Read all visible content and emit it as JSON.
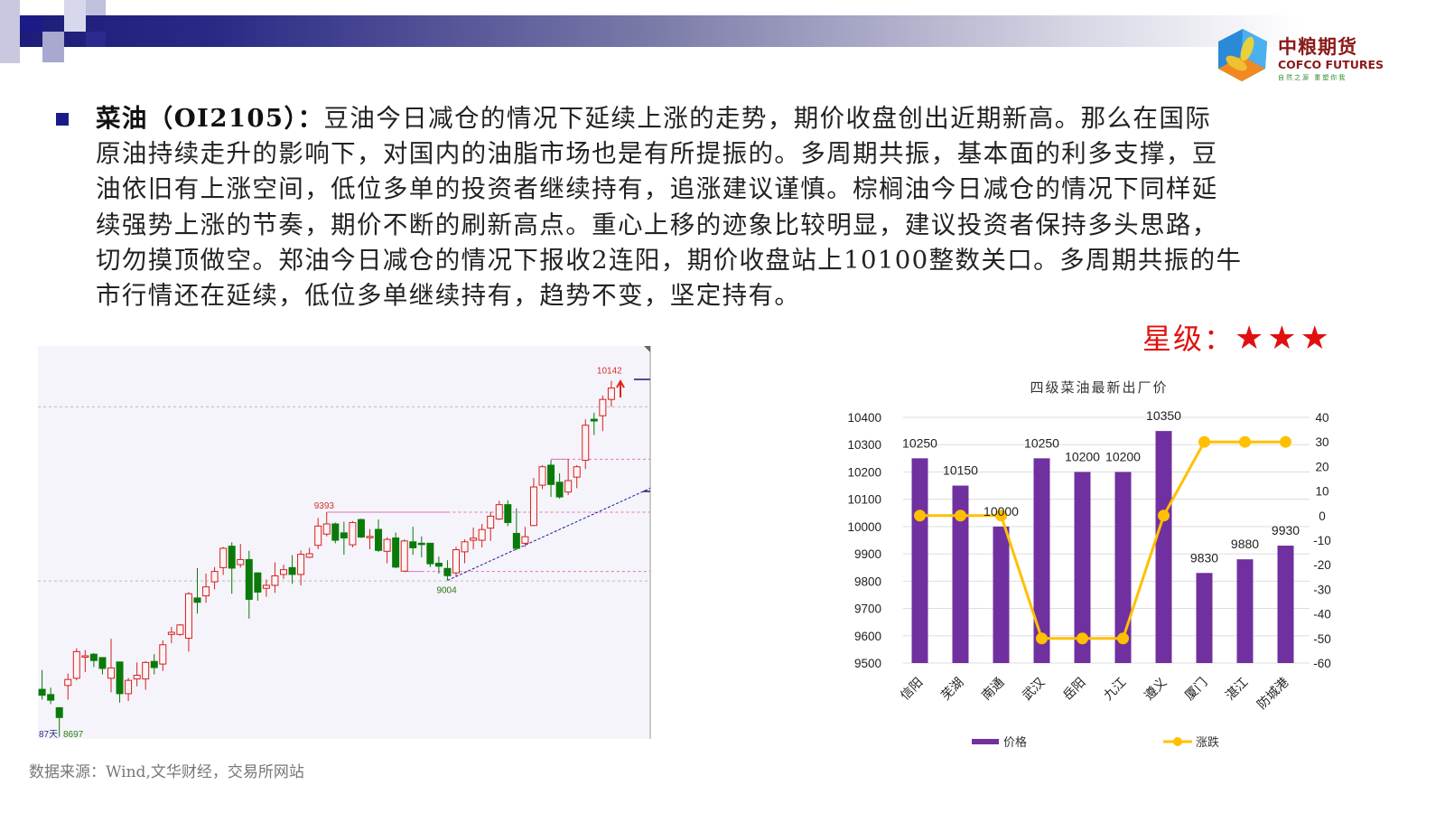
{
  "header": {
    "colors": {
      "bar_start": "#1b1b78",
      "bar_end": "#ffffff"
    }
  },
  "logo": {
    "name_cn": "中粮期货",
    "name_en": "COFCO FUTURES",
    "slogan": "自然之源 重塑你我"
  },
  "commentary": {
    "lead": "菜油（OI2105）：",
    "lines": [
      "豆油今日减仓的情况下延续上涨的走势，期价收盘创出近期新高。那么在国际",
      "原油持续走升的影响下，对国内的油脂市场也是有所提振的。多周期共振，基本面的利多支撑，豆",
      "油依旧有上涨空间，低位多单的投资者继续持有，追涨建议谨慎。棕榈油今日减仓的情况下同样延",
      "续强势上涨的节奏，期价不断的刷新高点。重心上移的迹象比较明显，建议投资者保持多头思路，",
      "切勿摸顶做空。郑油今日减仓的情况下报收2连阳，期价收盘站上10100整数关口。多周期共振的牛",
      "市行情还在延续，低位多单继续持有，趋势不变，坚定持有。"
    ]
  },
  "rating": {
    "label": "星级：",
    "stars": "★★★",
    "star_count": 3,
    "color": "#e01010"
  },
  "source": "数据来源：Wind,文华财经，交易所网站",
  "chart_data": [
    {
      "type": "candlestick",
      "ylim": [
        8100,
        10346
      ],
      "annotations": {
        "high": "10142",
        "mid_high": "9393",
        "low": "9004",
        "bottom_low": "8697",
        "bottom_count": "87天"
      },
      "colors": {
        "up": "#d42020",
        "down": "#0a7a0a",
        "trend": "#1a1a99",
        "level": "#e070c0"
      },
      "levels": [
        9994,
        9001
      ],
      "candles": [
        [
          8383,
          8493,
          8324,
          8349
        ],
        [
          8353,
          8392,
          8299,
          8321
        ],
        [
          8278,
          8282,
          8112,
          8222
        ],
        [
          8405,
          8473,
          8324,
          8439
        ],
        [
          8446,
          8617,
          8434,
          8598
        ],
        [
          8568,
          8607,
          8481,
          8574
        ],
        [
          8583,
          8590,
          8510,
          8547
        ],
        [
          8564,
          8566,
          8468,
          8502
        ],
        [
          8446,
          8671,
          8366,
          8505
        ],
        [
          8539,
          8539,
          8307,
          8358
        ],
        [
          8358,
          8448,
          8316,
          8434
        ],
        [
          8442,
          8536,
          8400,
          8463
        ],
        [
          8442,
          8544,
          8380,
          8536
        ],
        [
          8542,
          8583,
          8468,
          8507
        ],
        [
          8527,
          8662,
          8488,
          8637
        ],
        [
          8696,
          8739,
          8646,
          8708
        ],
        [
          8696,
          8755,
          8688,
          8750
        ],
        [
          8674,
          8938,
          8598,
          8928
        ],
        [
          8904,
          9074,
          8815,
          8879
        ],
        [
          8916,
          9043,
          8877,
          8967
        ],
        [
          8996,
          9080,
          8953,
          9055
        ],
        [
          9077,
          9195,
          9035,
          9187
        ],
        [
          9199,
          9221,
          8928,
          9074
        ],
        [
          9094,
          9212,
          9077,
          9123
        ],
        [
          9123,
          9173,
          8786,
          8896
        ],
        [
          9047,
          9047,
          8888,
          8937
        ],
        [
          8959,
          9009,
          8911,
          8976
        ],
        [
          8976,
          9107,
          8933,
          9030
        ],
        [
          9038,
          9094,
          9013,
          9065
        ],
        [
          9077,
          9148,
          8984,
          9038
        ],
        [
          9038,
          9175,
          8976,
          9153
        ],
        [
          9136,
          9190,
          9131,
          9156
        ],
        [
          9204,
          9360,
          9182,
          9314
        ],
        [
          9268,
          9393,
          9255,
          9326
        ],
        [
          9326,
          9334,
          9216,
          9233
        ],
        [
          9275,
          9339,
          9150,
          9246
        ],
        [
          9207,
          9343,
          9192,
          9334
        ],
        [
          9351,
          9356,
          9246,
          9251
        ],
        [
          9251,
          9297,
          9182,
          9255
        ],
        [
          9295,
          9351,
          9167,
          9175
        ],
        [
          9170,
          9250,
          9102,
          9238
        ],
        [
          9246,
          9277,
          9074,
          9080
        ],
        [
          9057,
          9238,
          9052,
          9229
        ],
        [
          9224,
          9310,
          9150,
          9190
        ],
        [
          9216,
          9255,
          9136,
          9212
        ],
        [
          9216,
          9216,
          9080,
          9099
        ],
        [
          9102,
          9140,
          9043,
          9085
        ],
        [
          9072,
          9119,
          9004,
          9031
        ],
        [
          9047,
          9195,
          9026,
          9179
        ],
        [
          9167,
          9238,
          9102,
          9224
        ],
        [
          9233,
          9305,
          9182,
          9245
        ],
        [
          9233,
          9326,
          9192,
          9294
        ],
        [
          9302,
          9395,
          9229,
          9370
        ],
        [
          9354,
          9458,
          9348,
          9436
        ],
        [
          9436,
          9461,
          9314,
          9334
        ],
        [
          9272,
          9415,
          9178,
          9187
        ],
        [
          9216,
          9309,
          9195,
          9253
        ],
        [
          9317,
          9588,
          9314,
          9537
        ],
        [
          9547,
          9661,
          9525,
          9652
        ],
        [
          9661,
          9691,
          9480,
          9551
        ],
        [
          9564,
          9615,
          9470,
          9480
        ],
        [
          9508,
          9695,
          9491,
          9573
        ],
        [
          9593,
          9661,
          9530,
          9652
        ],
        [
          9689,
          9923,
          9639,
          9889
        ],
        [
          9923,
          9960,
          9833,
          9913
        ],
        [
          9943,
          10058,
          9855,
          10036
        ],
        [
          10036,
          10142,
          9994,
          10101
        ]
      ]
    },
    {
      "type": "bar+line",
      "title": "四级菜油最新出厂价",
      "categories": [
        "信阳",
        "芜湖",
        "南通",
        "武汉",
        "岳阳",
        "九江",
        "遵义",
        "厦门",
        "湛江",
        "防城港"
      ],
      "series": [
        {
          "name": "价格",
          "type": "bar",
          "axis": "left",
          "color": "#7030a0",
          "values": [
            10250,
            10150,
            10000,
            10250,
            10200,
            10200,
            10350,
            9830,
            9880,
            9930
          ]
        },
        {
          "name": "涨跌",
          "type": "line",
          "axis": "right",
          "color": "#ffc000",
          "values": [
            0,
            0,
            0,
            -50,
            -50,
            -50,
            0,
            30,
            30,
            30
          ]
        }
      ],
      "y_left": {
        "range": [
          9500,
          10400
        ],
        "ticks": [
          "10400",
          "10300",
          "10200",
          "10100",
          "10000",
          "9900",
          "9800",
          "9700",
          "9600",
          "9500"
        ]
      },
      "y_right": {
        "range": [
          -60,
          40
        ],
        "ticks": [
          "40",
          "30",
          "20",
          "10",
          "0",
          "-10",
          "-20",
          "-30",
          "-40",
          "-50",
          "-60"
        ]
      },
      "grid": true,
      "legend": "bottom"
    }
  ]
}
